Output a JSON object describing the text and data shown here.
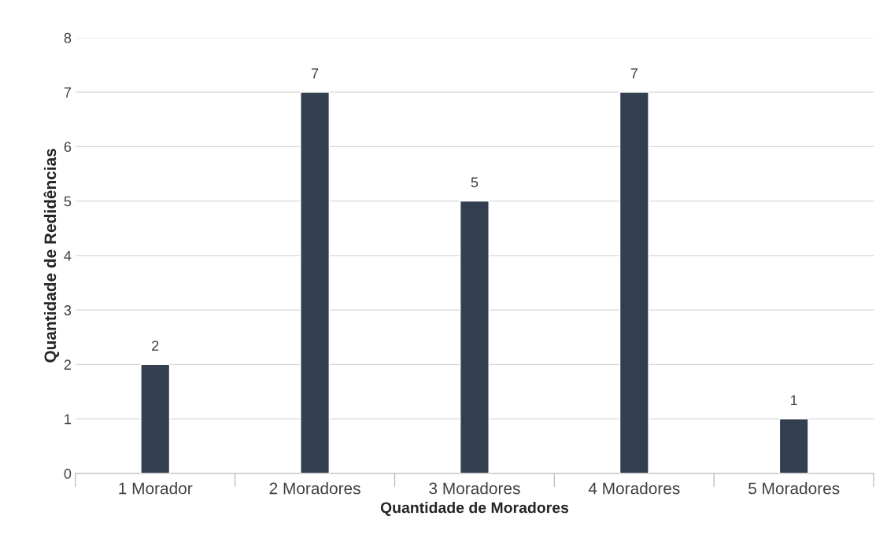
{
  "chart_data": {
    "type": "bar",
    "xlabel": "Quantidade de Moradores",
    "ylabel": "Quantidade de Redidências",
    "categories": [
      "1 Morador",
      "2 Moradores",
      "3 Moradores",
      "4 Moradores",
      "5 Moradores"
    ],
    "values": [
      2,
      7,
      5,
      7,
      1
    ],
    "color": "#333f50",
    "ylim": [
      0,
      8
    ],
    "yticks": [
      0,
      1,
      2,
      3,
      4,
      5,
      6,
      7,
      8
    ],
    "grid": "y",
    "data_labels": true
  }
}
